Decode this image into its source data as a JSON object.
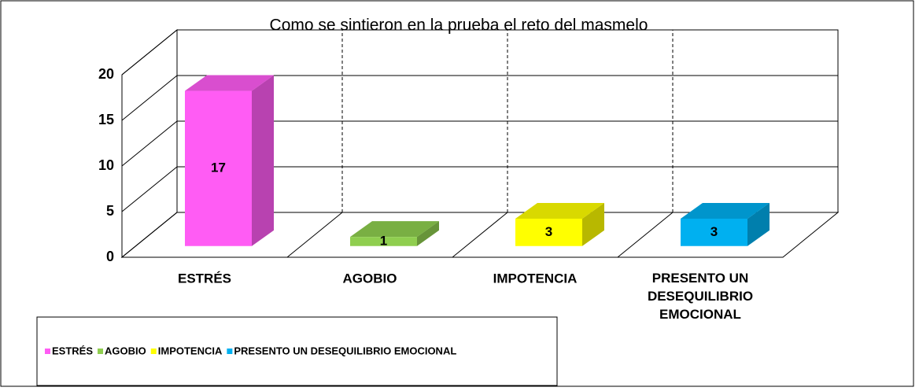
{
  "chart_data": {
    "type": "bar3d",
    "title": "Como se sintieron en la prueba el reto del masmelo",
    "categories": [
      "ESTRÉS",
      "AGOBIO",
      "IMPOTENCIA",
      "PRESENTO UN DESEQUILIBRIO EMOCIONAL"
    ],
    "values": [
      17,
      1,
      3,
      3
    ],
    "colors": [
      "#ff5cf4",
      "#8fce4f",
      "#ffff00",
      "#00b0f0"
    ],
    "ylim": [
      0,
      20
    ],
    "yticks": [
      0,
      5,
      10,
      15,
      20
    ],
    "grid": true,
    "legend": "bottom-left"
  }
}
